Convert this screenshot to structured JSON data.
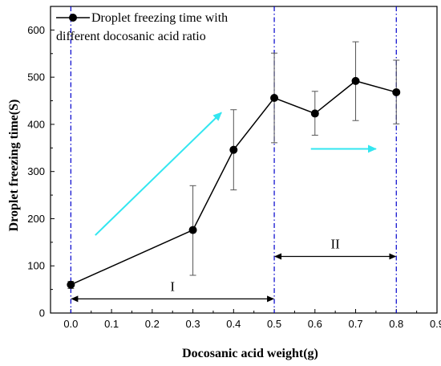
{
  "chart_data": {
    "type": "line",
    "title": "",
    "xlabel": "Docosanic acid weight(g)",
    "ylabel": "Droplet freezing time(S)",
    "xlim": [
      -0.05,
      0.9
    ],
    "ylim": [
      0,
      650
    ],
    "x_ticks": [
      0.0,
      0.1,
      0.2,
      0.3,
      0.4,
      0.5,
      0.6,
      0.7,
      0.8,
      0.9
    ],
    "x_tick_labels": [
      "0.0",
      "0.1",
      "0.2",
      "0.3",
      "0.4",
      "0.5",
      "0.6",
      "0.7",
      "0.8",
      "0.9"
    ],
    "y_ticks": [
      0,
      100,
      200,
      300,
      400,
      500,
      600
    ],
    "y_tick_labels": [
      "0",
      "100",
      "200",
      "300",
      "400",
      "500",
      "600"
    ],
    "grid": false,
    "legend_position": "top-left",
    "series": [
      {
        "name": "Droplet freezing time with different docosanic acid ratio",
        "color": "#000000",
        "marker": "circle",
        "x": [
          0.0,
          0.3,
          0.4,
          0.5,
          0.6,
          0.7,
          0.8
        ],
        "y": [
          60,
          176,
          346,
          456,
          423,
          492,
          468
        ],
        "err_low": [
          52,
          80,
          261,
          361,
          377,
          408,
          401
        ],
        "err_high": [
          67,
          270,
          431,
          551,
          470,
          575,
          536
        ]
      }
    ],
    "annotations": {
      "vertical_lines": {
        "x": [
          0.0,
          0.5,
          0.8
        ],
        "color": "#0000cc"
      },
      "regions": [
        {
          "label": "I",
          "x_start": 0.0,
          "x_end": 0.5,
          "y": 30
        },
        {
          "label": "II",
          "x_start": 0.5,
          "x_end": 0.8,
          "y": 120
        }
      ],
      "trend_arrows": [
        {
          "x_start": 0.06,
          "y_start": 165,
          "x_end": 0.37,
          "y_end": 425,
          "color": "#33e6f0"
        },
        {
          "x_start": 0.59,
          "y_start": 348,
          "x_end": 0.75,
          "y_end": 348,
          "color": "#33e6f0"
        }
      ]
    }
  }
}
